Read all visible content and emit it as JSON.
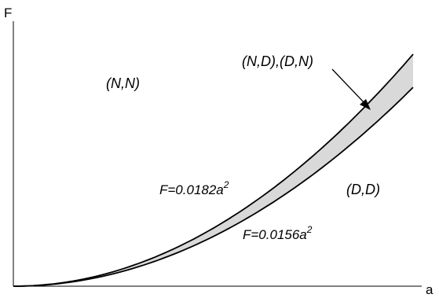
{
  "axes": {
    "x_label": "a",
    "y_label": "F"
  },
  "regions": {
    "upper": "(N,N)",
    "band": "(N,D),(D,N)",
    "lower": "(D,D)"
  },
  "curves": {
    "upper": {
      "label_base": "F=0.0182a",
      "label_exp": "2",
      "coefficient": 0.0182,
      "power": 2
    },
    "lower": {
      "label_base": "F=0.0156a",
      "label_exp": "2",
      "coefficient": 0.0156,
      "power": 2
    }
  },
  "colors": {
    "line": "#000000",
    "band_fill": "#d9d9d9",
    "background": "#ffffff"
  }
}
